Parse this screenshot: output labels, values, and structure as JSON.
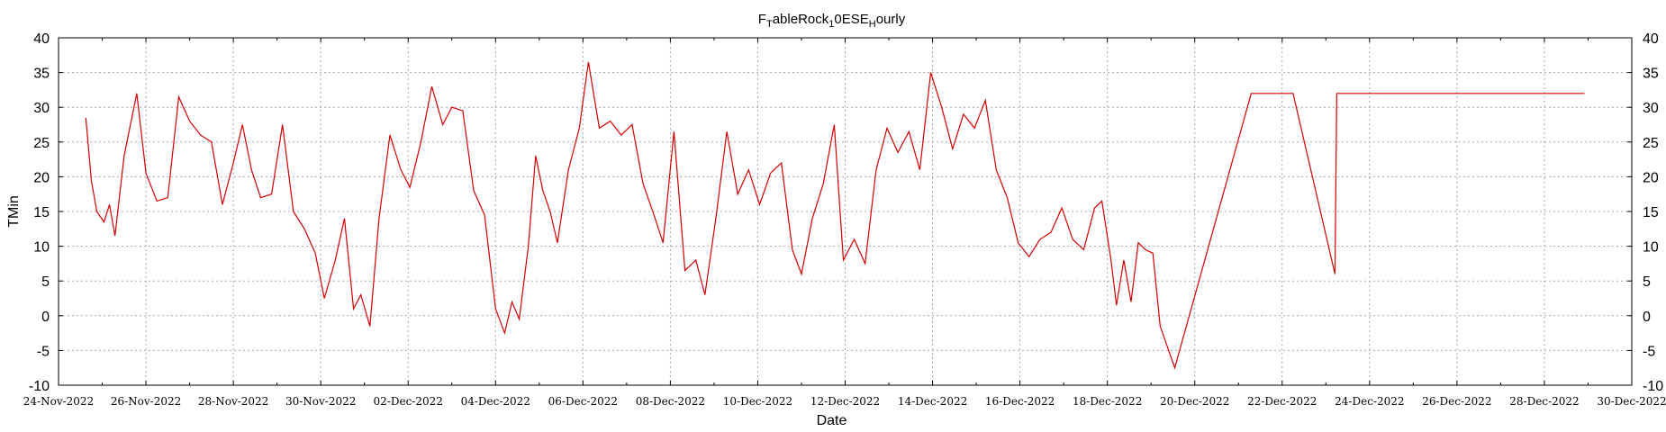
{
  "chart_data": {
    "type": "line",
    "title_parts": [
      {
        "text": "F",
        "sub": false
      },
      {
        "text": "T",
        "sub": true
      },
      {
        "text": "ableRock",
        "sub": false
      },
      {
        "text": "1",
        "sub": true
      },
      {
        "text": "0ESE",
        "sub": false
      },
      {
        "text": "H",
        "sub": true
      },
      {
        "text": "ourly",
        "sub": false
      }
    ],
    "xlabel": "Date",
    "ylabel": "TMin",
    "xlim": [
      "2022-11-24",
      "2022-12-30"
    ],
    "ylim": [
      -10,
      40
    ],
    "grid": true,
    "x_tick_labels": [
      "24-Nov-2022",
      "26-Nov-2022",
      "28-Nov-2022",
      "30-Nov-2022",
      "02-Dec-2022",
      "04-Dec-2022",
      "06-Dec-2022",
      "08-Dec-2022",
      "10-Dec-2022",
      "12-Dec-2022",
      "14-Dec-2022",
      "16-Dec-2022",
      "18-Dec-2022",
      "20-Dec-2022",
      "22-Dec-2022",
      "24-Dec-2022",
      "26-Dec-2022",
      "28-Dec-2022",
      "30-Dec-2022"
    ],
    "y_ticks": [
      -10,
      -5,
      0,
      5,
      10,
      15,
      20,
      25,
      30,
      35,
      40
    ],
    "series": [
      {
        "color": "#d40000",
        "points": [
          [
            "2022-11-24 15:00",
            28.5
          ],
          [
            "2022-11-24 18:00",
            19.5
          ],
          [
            "2022-11-24 21:00",
            15
          ],
          [
            "2022-11-25 01:00",
            13.5
          ],
          [
            "2022-11-25 04:00",
            16
          ],
          [
            "2022-11-25 07:00",
            11.5
          ],
          [
            "2022-11-25 12:00",
            23
          ],
          [
            "2022-11-25 19:00",
            32
          ],
          [
            "2022-11-26 00:00",
            20.5
          ],
          [
            "2022-11-26 06:00",
            16.5
          ],
          [
            "2022-11-26 12:00",
            17
          ],
          [
            "2022-11-26 18:00",
            31.5
          ],
          [
            "2022-11-27 00:00",
            28
          ],
          [
            "2022-11-27 06:00",
            26
          ],
          [
            "2022-11-27 12:00",
            25
          ],
          [
            "2022-11-27 18:00",
            16
          ],
          [
            "2022-11-28 00:00",
            22
          ],
          [
            "2022-11-28 05:00",
            27.5
          ],
          [
            "2022-11-28 10:00",
            21
          ],
          [
            "2022-11-28 15:00",
            17
          ],
          [
            "2022-11-28 21:00",
            17.5
          ],
          [
            "2022-11-29 03:00",
            27.5
          ],
          [
            "2022-11-29 09:00",
            15
          ],
          [
            "2022-11-29 15:00",
            12.5
          ],
          [
            "2022-11-29 21:00",
            9
          ],
          [
            "2022-11-30 02:00",
            2.5
          ],
          [
            "2022-11-30 08:00",
            8
          ],
          [
            "2022-11-30 13:00",
            14
          ],
          [
            "2022-11-30 18:00",
            1
          ],
          [
            "2022-11-30 22:00",
            3
          ],
          [
            "2022-12-01 03:00",
            -1.5
          ],
          [
            "2022-12-01 08:00",
            14
          ],
          [
            "2022-12-01 14:00",
            26
          ],
          [
            "2022-12-01 20:00",
            21
          ],
          [
            "2022-12-02 01:00",
            18.5
          ],
          [
            "2022-12-02 07:00",
            25
          ],
          [
            "2022-12-02 13:00",
            33
          ],
          [
            "2022-12-02 19:00",
            27.5
          ],
          [
            "2022-12-03 00:00",
            30
          ],
          [
            "2022-12-03 06:00",
            29.5
          ],
          [
            "2022-12-03 12:00",
            18
          ],
          [
            "2022-12-03 18:00",
            14.5
          ],
          [
            "2022-12-04 00:00",
            1
          ],
          [
            "2022-12-04 05:00",
            -2.5
          ],
          [
            "2022-12-04 09:00",
            2
          ],
          [
            "2022-12-04 13:00",
            -0.5
          ],
          [
            "2022-12-04 18:00",
            10
          ],
          [
            "2022-12-04 22:00",
            23
          ],
          [
            "2022-12-05 02:00",
            18
          ],
          [
            "2022-12-05 06:00",
            15
          ],
          [
            "2022-12-05 10:00",
            10.5
          ],
          [
            "2022-12-05 16:00",
            21
          ],
          [
            "2022-12-05 22:00",
            27
          ],
          [
            "2022-12-06 03:00",
            36.5
          ],
          [
            "2022-12-06 09:00",
            27
          ],
          [
            "2022-12-06 15:00",
            28
          ],
          [
            "2022-12-06 21:00",
            26
          ],
          [
            "2022-12-07 03:00",
            27.5
          ],
          [
            "2022-12-07 09:00",
            19
          ],
          [
            "2022-12-07 15:00",
            14.5
          ],
          [
            "2022-12-07 20:00",
            10.5
          ],
          [
            "2022-12-08 02:00",
            26.5
          ],
          [
            "2022-12-08 08:00",
            6.5
          ],
          [
            "2022-12-08 14:00",
            8
          ],
          [
            "2022-12-08 19:00",
            3
          ],
          [
            "2022-12-09 01:00",
            14
          ],
          [
            "2022-12-09 07:00",
            26.5
          ],
          [
            "2022-12-09 13:00",
            17.5
          ],
          [
            "2022-12-09 19:00",
            21
          ],
          [
            "2022-12-10 01:00",
            16
          ],
          [
            "2022-12-10 07:00",
            20.5
          ],
          [
            "2022-12-10 13:00",
            22
          ],
          [
            "2022-12-10 19:00",
            9.5
          ],
          [
            "2022-12-11 00:00",
            6
          ],
          [
            "2022-12-11 06:00",
            14
          ],
          [
            "2022-12-11 12:00",
            19
          ],
          [
            "2022-12-11 18:00",
            27.5
          ],
          [
            "2022-12-11 23:00",
            8
          ],
          [
            "2022-12-12 05:00",
            11
          ],
          [
            "2022-12-12 11:00",
            7.5
          ],
          [
            "2022-12-12 17:00",
            21
          ],
          [
            "2022-12-12 23:00",
            27
          ],
          [
            "2022-12-13 05:00",
            23.5
          ],
          [
            "2022-12-13 11:00",
            26.5
          ],
          [
            "2022-12-13 17:00",
            21
          ],
          [
            "2022-12-13 23:00",
            35
          ],
          [
            "2022-12-14 05:00",
            30
          ],
          [
            "2022-12-14 11:00",
            24
          ],
          [
            "2022-12-14 17:00",
            29
          ],
          [
            "2022-12-14 23:00",
            27
          ],
          [
            "2022-12-15 05:00",
            31
          ],
          [
            "2022-12-15 11:00",
            21
          ],
          [
            "2022-12-15 17:00",
            17
          ],
          [
            "2022-12-15 23:00",
            10.5
          ],
          [
            "2022-12-16 05:00",
            8.5
          ],
          [
            "2022-12-16 11:00",
            11
          ],
          [
            "2022-12-16 17:00",
            12
          ],
          [
            "2022-12-16 23:00",
            15.5
          ],
          [
            "2022-12-17 05:00",
            11
          ],
          [
            "2022-12-17 11:00",
            9.5
          ],
          [
            "2022-12-17 17:00",
            15.5
          ],
          [
            "2022-12-17 21:00",
            16.5
          ],
          [
            "2022-12-18 02:00",
            8
          ],
          [
            "2022-12-18 05:00",
            1.5
          ],
          [
            "2022-12-18 09:00",
            8
          ],
          [
            "2022-12-18 13:00",
            2
          ],
          [
            "2022-12-18 17:00",
            10.5
          ],
          [
            "2022-12-18 21:00",
            9.5
          ],
          [
            "2022-12-19 01:00",
            9
          ],
          [
            "2022-12-19 05:00",
            -1.5
          ],
          [
            "2022-12-19 09:00",
            -4.5
          ],
          [
            "2022-12-19 13:00",
            -7.5
          ],
          [
            "2022-12-21 07:00",
            32
          ],
          [
            "2022-12-22 06:00",
            32
          ],
          [
            "2022-12-23 05:00",
            6
          ],
          [
            "2022-12-23 06:00",
            32
          ],
          [
            "2022-12-28 22:00",
            32
          ]
        ]
      }
    ]
  }
}
